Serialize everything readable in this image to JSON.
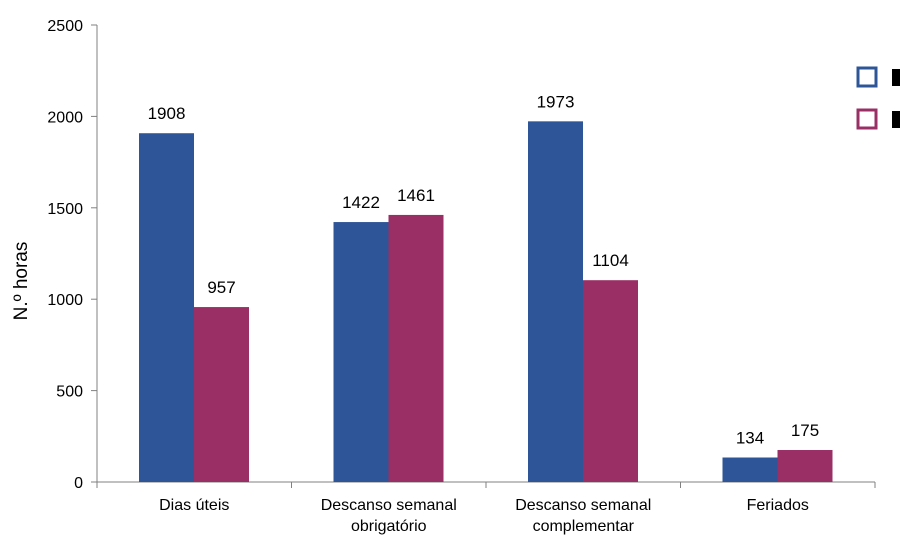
{
  "chart_data": {
    "type": "bar",
    "title": "",
    "xlabel": "",
    "ylabel": "N.º horas",
    "ylim": [
      0,
      2500
    ],
    "yticks": [
      0,
      500,
      1000,
      1500,
      2000,
      2500
    ],
    "categories": [
      [
        "Dias úteis"
      ],
      [
        "Descanso semanal",
        "obrigatório"
      ],
      [
        "Descanso semanal",
        "complementar"
      ],
      [
        "Feriados"
      ]
    ],
    "series": [
      {
        "values": [
          1908,
          1422,
          1973,
          134
        ],
        "color": "#2E5597"
      },
      {
        "values": [
          957,
          1461,
          1104,
          175
        ],
        "color": "#9A2F66"
      }
    ],
    "grid": false,
    "legend_position": "right (clipped)"
  }
}
